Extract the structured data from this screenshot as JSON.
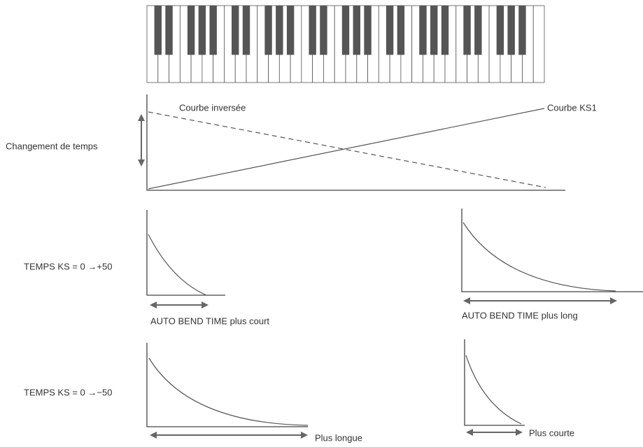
{
  "labels": {
    "inverse_curve": "Courbe inversée",
    "ks1_curve": "Courbe KS1",
    "time_change": "Changement de temps",
    "ks_plus": "TEMPS KS = 0 →+50",
    "shorter_time": "AUTO BEND TIME plus court",
    "longer_time": "AUTO BEND TIME plus long",
    "ks_minus": "TEMPS KS = 0 →−50",
    "longer": "Plus longue",
    "shorter": "Plus courte"
  }
}
